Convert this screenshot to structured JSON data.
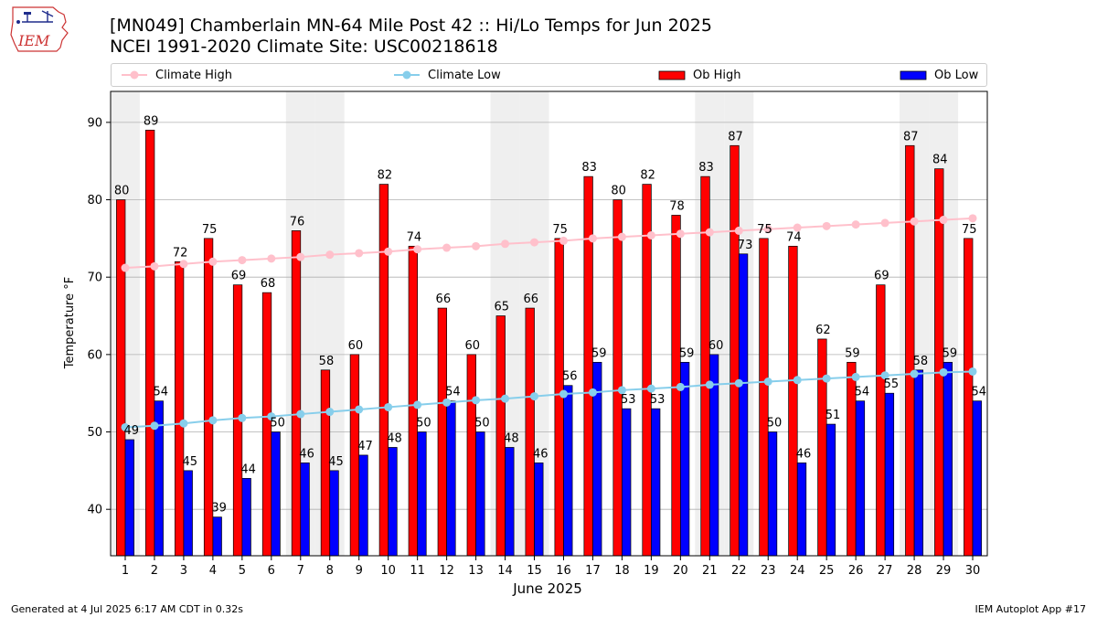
{
  "header": {
    "logo_text": "IEM",
    "title_line1": "[MN049] Chamberlain MN-64 Mile Post 42 :: Hi/Lo Temps for Jun 2025",
    "title_line2": "NCEI 1991-2020 Climate Site: USC00218618"
  },
  "footer": {
    "generated": "Generated at 4 Jul 2025 6:17 AM CDT in 0.32s",
    "app": "IEM Autoplot App #17"
  },
  "colors": {
    "ob_high": "#ff0000",
    "ob_low": "#0000ff",
    "climate_high": "#ffc0cb",
    "climate_low": "#87ceeb",
    "weekend_shade": "#efefef",
    "grid": "#b0b0b0"
  },
  "chart_data": {
    "type": "bar",
    "xlabel": "June 2025",
    "ylabel": "Temperature °F",
    "ylim": [
      34,
      94
    ],
    "yticks": [
      40,
      50,
      60,
      70,
      80,
      90
    ],
    "grid": "horizontal",
    "legend_position": "top",
    "categories": [
      "1",
      "2",
      "3",
      "4",
      "5",
      "6",
      "7",
      "8",
      "9",
      "10",
      "11",
      "12",
      "13",
      "14",
      "15",
      "16",
      "17",
      "18",
      "19",
      "20",
      "21",
      "22",
      "23",
      "24",
      "25",
      "26",
      "27",
      "28",
      "29",
      "30"
    ],
    "shaded_days": [
      1,
      7,
      8,
      14,
      15,
      21,
      22,
      28,
      29
    ],
    "series": [
      {
        "name": "Climate High",
        "kind": "line",
        "values": [
          71.2,
          71.4,
          71.7,
          72.0,
          72.2,
          72.4,
          72.6,
          72.9,
          73.1,
          73.3,
          73.6,
          73.8,
          74.0,
          74.3,
          74.5,
          74.7,
          75.0,
          75.2,
          75.4,
          75.6,
          75.8,
          76.0,
          76.2,
          76.4,
          76.6,
          76.8,
          77.0,
          77.2,
          77.4,
          77.6
        ]
      },
      {
        "name": "Climate Low",
        "kind": "line",
        "values": [
          50.6,
          50.8,
          51.1,
          51.5,
          51.8,
          52.0,
          52.3,
          52.6,
          52.9,
          53.2,
          53.5,
          53.8,
          54.1,
          54.3,
          54.6,
          54.9,
          55.1,
          55.4,
          55.6,
          55.8,
          56.1,
          56.3,
          56.5,
          56.7,
          56.9,
          57.1,
          57.3,
          57.5,
          57.7,
          57.8
        ]
      },
      {
        "name": "Ob High",
        "kind": "bar",
        "values": [
          80,
          89,
          72,
          75,
          69,
          68,
          76,
          58,
          60,
          82,
          74,
          66,
          60,
          65,
          66,
          75,
          83,
          80,
          82,
          78,
          83,
          87,
          75,
          74,
          62,
          59,
          69,
          87,
          84,
          75
        ]
      },
      {
        "name": "Ob Low",
        "kind": "bar",
        "values": [
          49,
          54,
          45,
          39,
          44,
          50,
          46,
          45,
          47,
          48,
          50,
          54,
          50,
          48,
          46,
          56,
          59,
          53,
          53,
          59,
          60,
          73,
          50,
          46,
          51,
          54,
          55,
          58,
          59,
          54
        ]
      }
    ]
  }
}
